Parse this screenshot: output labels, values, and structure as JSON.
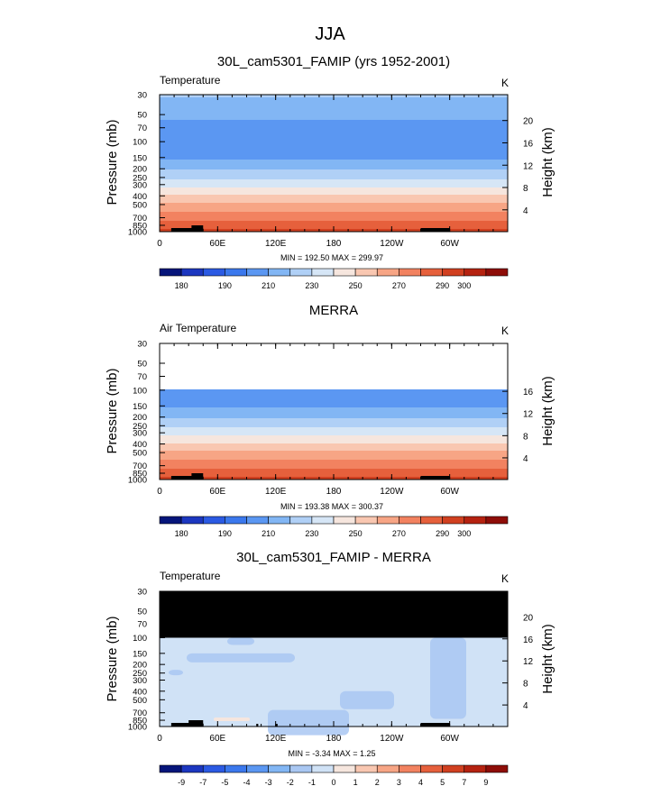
{
  "figure_title": "JJA",
  "chart_data": [
    {
      "type": "heatmap",
      "title": "30L_cam5301_FAMIP (yrs 1952-2001)",
      "subtitle_left": "Temperature",
      "units": "K",
      "ylabel": "Pressure (mb)",
      "ylabel_right": "Height (km)",
      "x_ticks": [
        "0",
        "60E",
        "120E",
        "180",
        "120W",
        "60W"
      ],
      "y_ticks": [
        "30",
        "50",
        "70",
        "100",
        "150",
        "200",
        "250",
        "300",
        "400",
        "500",
        "700",
        "850",
        "1000"
      ],
      "y_ticks_right": [
        "20",
        "16",
        "12",
        "8",
        "4"
      ],
      "x_range": [
        "0",
        "360"
      ],
      "y_range_mb": [
        30,
        1000
      ],
      "stats": "MIN = 192.50  MAX = 299.97",
      "min": 192.5,
      "max": 299.97,
      "colorbar_labels": [
        "180",
        "190",
        "210",
        "230",
        "250",
        "270",
        "290",
        "300"
      ],
      "profile": {
        "p": [
          30,
          50,
          70,
          100,
          150,
          200,
          250,
          300,
          400,
          500,
          600,
          700,
          850,
          925,
          1000
        ],
        "t": [
          221,
          213,
          206,
          200,
          208,
          219,
          228,
          236,
          251,
          262,
          270,
          276,
          285,
          289,
          294
        ]
      }
    },
    {
      "type": "heatmap",
      "title": "MERRA",
      "subtitle_left": "Air Temperature",
      "units": "K",
      "ylabel": "Pressure (mb)",
      "ylabel_right": "Height (km)",
      "x_ticks": [
        "0",
        "60E",
        "120E",
        "180",
        "120W",
        "60W"
      ],
      "y_ticks": [
        "30",
        "50",
        "70",
        "100",
        "150",
        "200",
        "250",
        "300",
        "400",
        "500",
        "700",
        "850",
        "1000"
      ],
      "y_ticks_right": [
        "16",
        "12",
        "8",
        "4"
      ],
      "x_range": [
        "0",
        "360"
      ],
      "y_range_mb": [
        30,
        1000
      ],
      "data_top_mb": 100,
      "stats": "MIN = 193.38  MAX = 300.37",
      "min": 193.38,
      "max": 300.37,
      "colorbar_labels": [
        "180",
        "190",
        "210",
        "230",
        "250",
        "270",
        "290",
        "300"
      ],
      "profile": {
        "p": [
          100,
          150,
          200,
          250,
          300,
          400,
          500,
          600,
          700,
          850,
          925,
          1000
        ],
        "t": [
          200,
          209,
          219,
          228,
          237,
          251,
          262,
          270,
          276,
          285,
          290,
          295
        ]
      }
    },
    {
      "type": "heatmap",
      "title": "30L_cam5301_FAMIP - MERRA",
      "subtitle_left": "Temperature",
      "units": "K",
      "ylabel": "Pressure (mb)",
      "ylabel_right": "Height (km)",
      "x_ticks": [
        "0",
        "60E",
        "120E",
        "180",
        "120W",
        "60W"
      ],
      "y_ticks": [
        "30",
        "50",
        "70",
        "100",
        "150",
        "200",
        "250",
        "300",
        "400",
        "500",
        "700",
        "850",
        "1000"
      ],
      "y_ticks_right": [
        "20",
        "16",
        "12",
        "8",
        "4"
      ],
      "x_range": [
        "0",
        "360"
      ],
      "y_range_mb": [
        30,
        1000
      ],
      "missing_above_mb": 100,
      "stats": "MIN = -3.34  MAX =  1.25",
      "min": -3.34,
      "max": 1.25,
      "colorbar_labels": [
        "-9",
        "-7",
        "-5",
        "-4",
        "-3",
        "-2",
        "-1",
        "0",
        "1",
        "2",
        "3",
        "4",
        "5",
        "7",
        "9"
      ],
      "dominant_band": "-1 to 0"
    }
  ],
  "palette_temp": [
    "#06157a",
    "#1c37c0",
    "#2b5ae3",
    "#3b78ed",
    "#5b97f2",
    "#82b6f4",
    "#b0d0f6",
    "#d6e6f6",
    "#f6e6de",
    "#f9c7b1",
    "#f7a585",
    "#f28260",
    "#e6603c",
    "#d14020",
    "#b52210",
    "#8e0d08"
  ],
  "palette_diff": [
    "#06157a",
    "#1c37c0",
    "#2b5ae3",
    "#3b78ed",
    "#5b97f2",
    "#82b6f4",
    "#a9c7f2",
    "#d0e2f6",
    "#f6e6de",
    "#f9c7b1",
    "#f7a585",
    "#f28260",
    "#e6603c",
    "#d14020",
    "#b52210",
    "#8e0d08"
  ]
}
